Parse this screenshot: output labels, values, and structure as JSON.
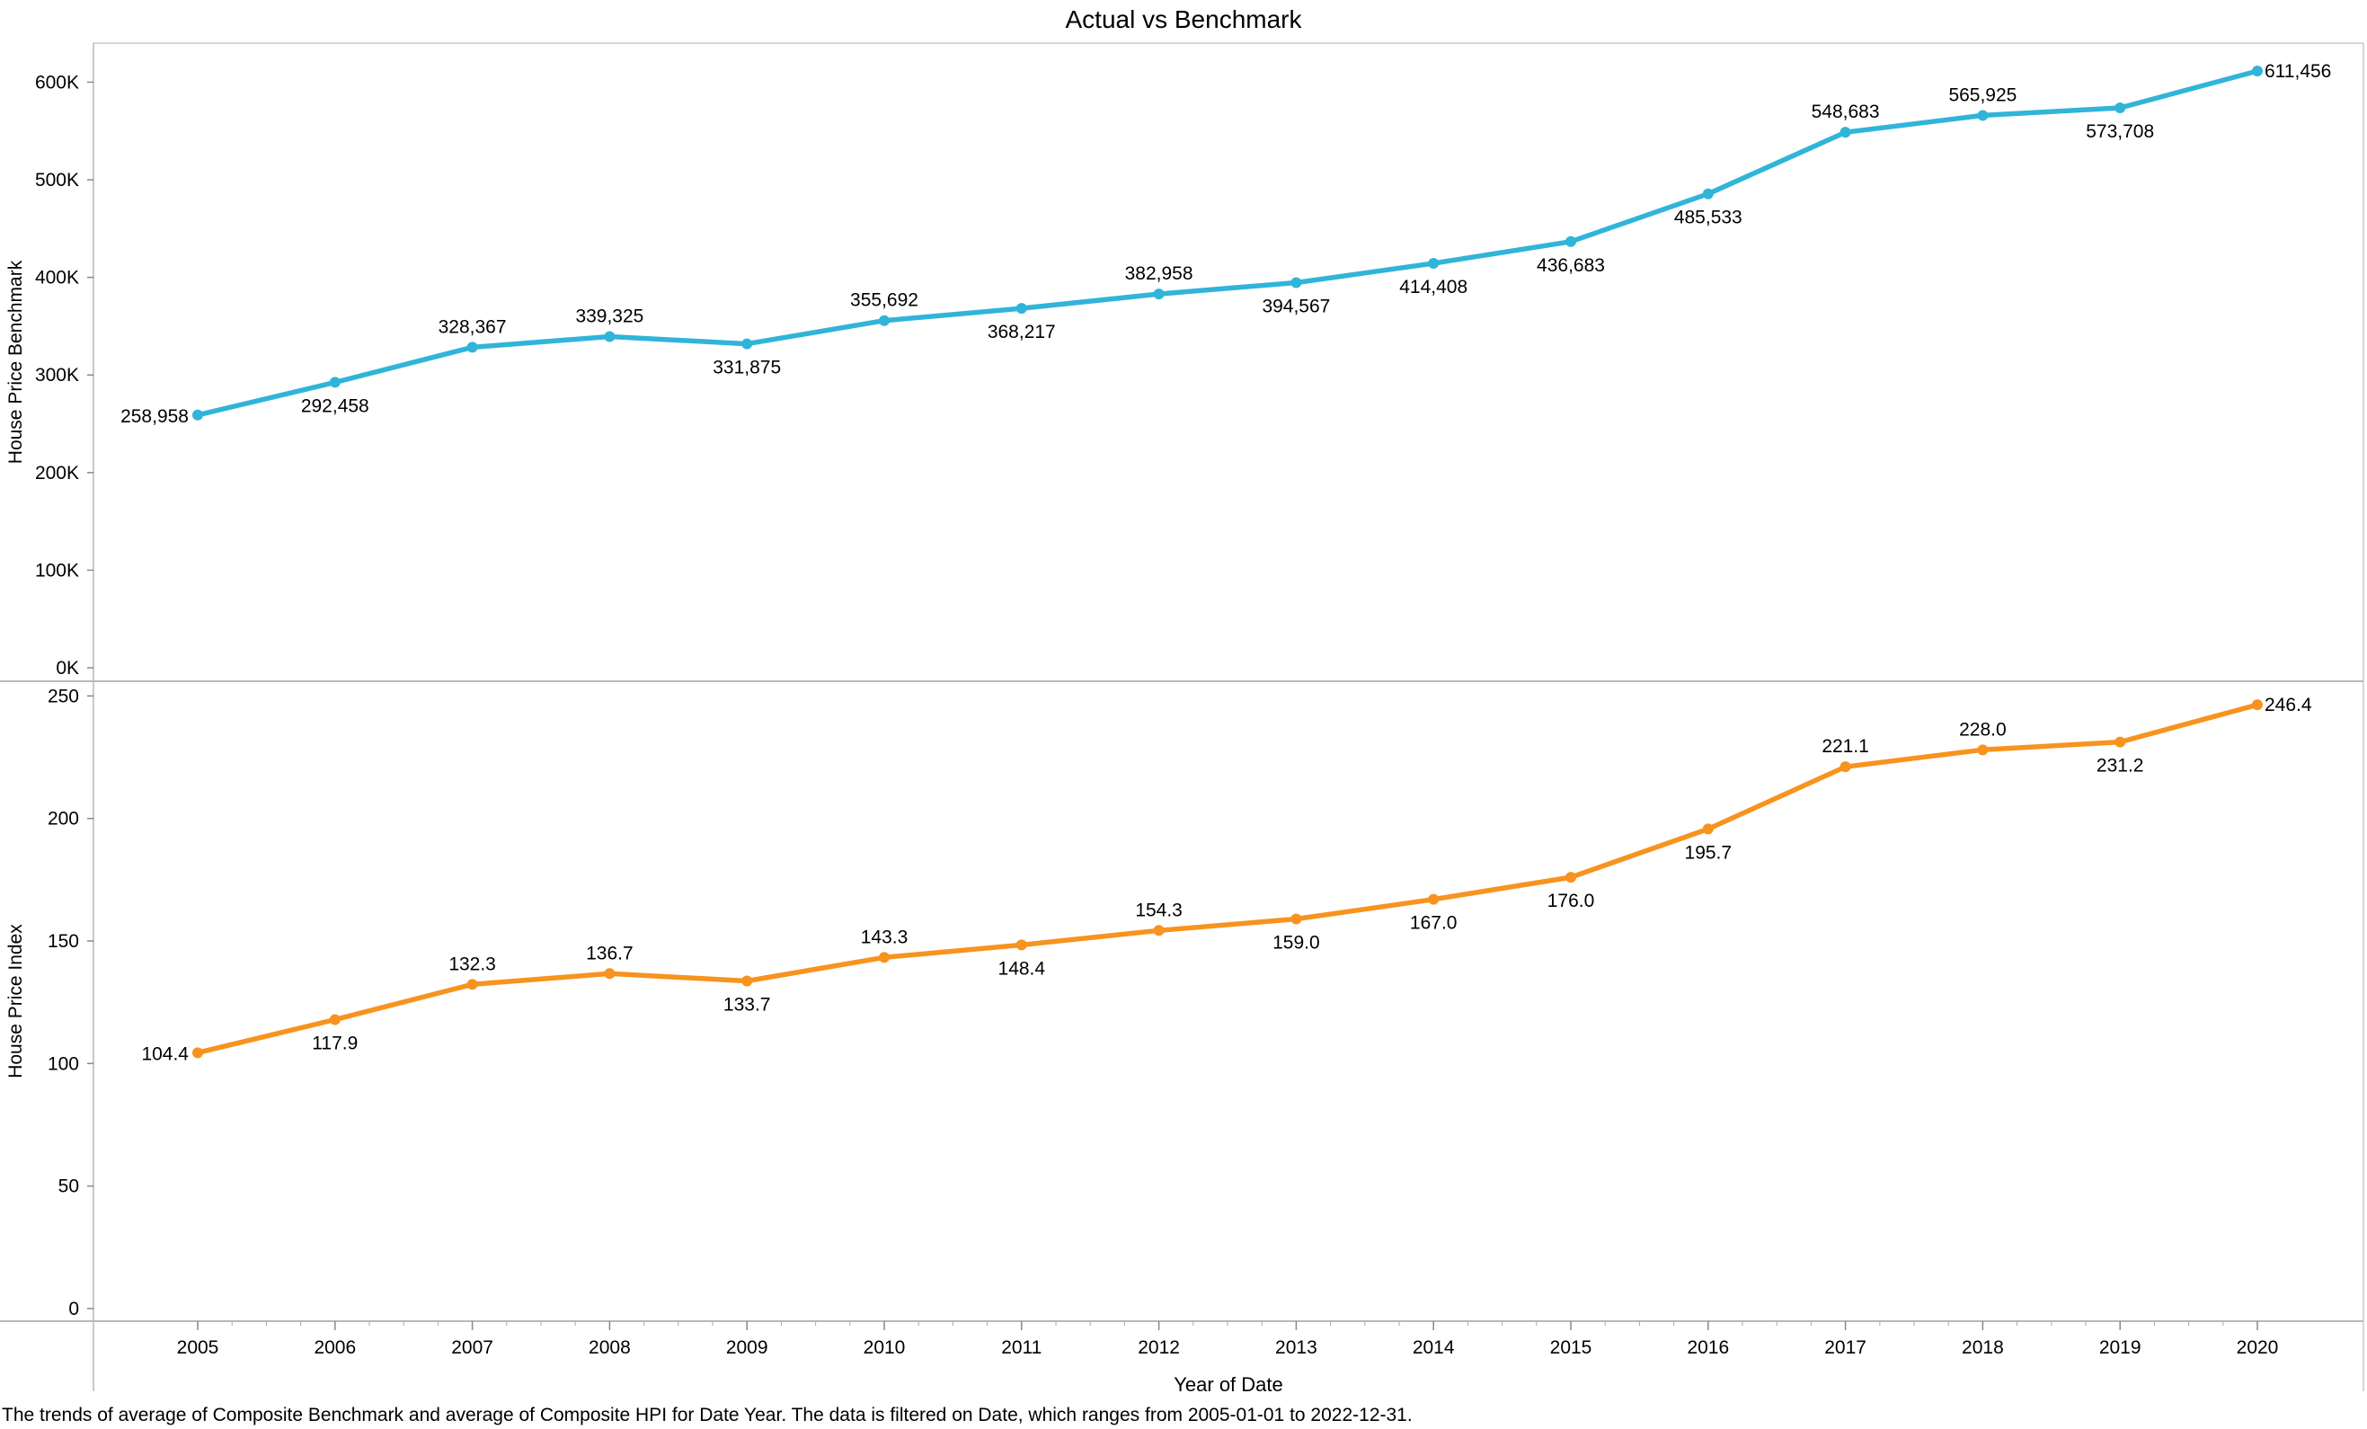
{
  "caption": "The trends of average of Composite Benchmark and average of Composite HPI for Date Year. The data is filtered on Date, which ranges from 2005-01-01 to 2022-12-31.",
  "chart_data": {
    "type": "line",
    "title": "Actual vs Benchmark",
    "xlabel": "Year of Date",
    "x": [
      2005,
      2006,
      2007,
      2008,
      2009,
      2010,
      2011,
      2012,
      2013,
      2014,
      2015,
      2016,
      2017,
      2018,
      2019,
      2020
    ],
    "x_tick_labels": [
      "2005",
      "2006",
      "2007",
      "2008",
      "2009",
      "2010",
      "2011",
      "2012",
      "2013",
      "2014",
      "2015",
      "2016",
      "2017",
      "2018",
      "2019",
      "2020"
    ],
    "grid": false,
    "panels": [
      {
        "ylabel": "House Price Benchmark",
        "color": "#31b4d9",
        "ylim": [
          0,
          640000
        ],
        "yticks": [
          0,
          100000,
          200000,
          300000,
          400000,
          500000,
          600000
        ],
        "ytick_labels": [
          "0K",
          "100K",
          "200K",
          "300K",
          "400K",
          "500K",
          "600K"
        ],
        "values": [
          258958,
          292458,
          328367,
          339325,
          331875,
          355692,
          368217,
          382958,
          394567,
          414408,
          436683,
          485533,
          548683,
          565925,
          573708,
          611456
        ],
        "value_labels": [
          "258,958",
          "292,458",
          "328,367",
          "339,325",
          "331,875",
          "355,692",
          "368,217",
          "382,958",
          "394,567",
          "414,408",
          "436,683",
          "485,533",
          "548,683",
          "565,925",
          "573,708",
          "611,456"
        ],
        "label_positions": [
          "left",
          "below",
          "above",
          "above",
          "below",
          "above",
          "below",
          "above",
          "below",
          "below",
          "below",
          "below",
          "above",
          "above",
          "below",
          "right"
        ]
      },
      {
        "ylabel": "House Price Index",
        "color": "#f7931e",
        "ylim": [
          0,
          256
        ],
        "yticks": [
          0,
          50,
          100,
          150,
          200,
          250
        ],
        "ytick_labels": [
          "0",
          "50",
          "100",
          "150",
          "200",
          "250"
        ],
        "values": [
          104.4,
          117.9,
          132.3,
          136.7,
          133.7,
          143.3,
          148.4,
          154.3,
          159.0,
          167.0,
          176.0,
          195.7,
          221.1,
          228.0,
          231.2,
          246.4
        ],
        "value_labels": [
          "104.4",
          "117.9",
          "132.3",
          "136.7",
          "133.7",
          "143.3",
          "148.4",
          "154.3",
          "159.0",
          "167.0",
          "176.0",
          "195.7",
          "221.1",
          "228.0",
          "231.2",
          "246.4"
        ],
        "label_positions": [
          "left",
          "below",
          "above",
          "above",
          "below",
          "above",
          "below",
          "above",
          "below",
          "below",
          "below",
          "below",
          "above",
          "above",
          "below",
          "right"
        ]
      }
    ]
  }
}
